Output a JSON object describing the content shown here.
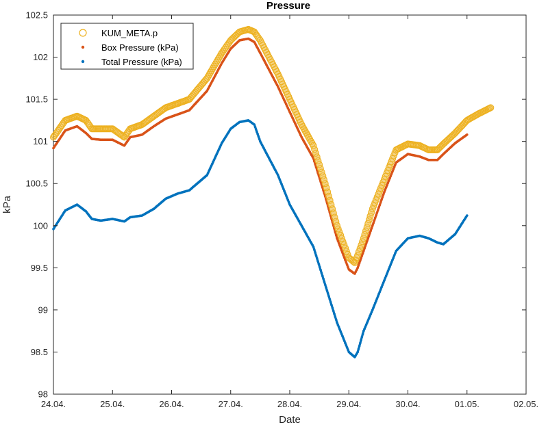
{
  "chart_data": {
    "type": "scatter",
    "title": "Pressure",
    "xlabel": "Date",
    "ylabel": "kPa",
    "xlim": [
      0,
      8
    ],
    "ylim": [
      98,
      102.5
    ],
    "grid": false,
    "legend_position": "top-left",
    "xtick_labels": [
      "24.04.",
      "25.04.",
      "26.04.",
      "27.04.",
      "28.04.",
      "29.04.",
      "30.04.",
      "01.05.",
      "02.05."
    ],
    "yticks": [
      98,
      98.5,
      99,
      99.5,
      100,
      100.5,
      101,
      101.5,
      102,
      102.5
    ],
    "ytick_labels": [
      "98",
      "98.5",
      "99",
      "99.5",
      "100",
      "100.5",
      "101",
      "101.5",
      "102",
      "102.5"
    ],
    "x_days_since": "24.04.",
    "series": [
      {
        "name": "KUM_META.p",
        "color": "#EDB120",
        "marker": "circle-open",
        "x": [
          0.0,
          0.2,
          0.4,
          0.55,
          0.65,
          0.8,
          1.0,
          1.2,
          1.3,
          1.5,
          1.7,
          1.9,
          2.1,
          2.3,
          2.6,
          2.85,
          3.0,
          3.15,
          3.3,
          3.4,
          3.5,
          3.65,
          3.8,
          4.0,
          4.2,
          4.4,
          4.6,
          4.8,
          5.0,
          5.1,
          5.15,
          5.25,
          5.4,
          5.6,
          5.8,
          6.0,
          6.2,
          6.35,
          6.5,
          6.6,
          6.8,
          7.0,
          7.2,
          7.4
        ],
        "y": [
          101.05,
          101.25,
          101.3,
          101.25,
          101.15,
          101.15,
          101.15,
          101.05,
          101.15,
          101.2,
          101.3,
          101.4,
          101.45,
          101.5,
          101.75,
          102.05,
          102.2,
          102.3,
          102.33,
          102.3,
          102.2,
          102.0,
          101.8,
          101.5,
          101.2,
          100.95,
          100.5,
          100.0,
          99.62,
          99.56,
          99.65,
          99.85,
          100.2,
          100.55,
          100.9,
          100.97,
          100.95,
          100.9,
          100.9,
          100.97,
          101.1,
          101.25,
          101.33,
          101.4
        ]
      },
      {
        "name": "Box Pressure (kPa)",
        "color": "#D95319",
        "marker": "dot",
        "x": [
          0.0,
          0.2,
          0.4,
          0.55,
          0.65,
          0.8,
          1.0,
          1.2,
          1.3,
          1.5,
          1.7,
          1.9,
          2.1,
          2.3,
          2.6,
          2.85,
          3.0,
          3.15,
          3.3,
          3.4,
          3.5,
          3.65,
          3.8,
          4.0,
          4.2,
          4.4,
          4.6,
          4.8,
          5.0,
          5.1,
          5.15,
          5.25,
          5.4,
          5.6,
          5.8,
          6.0,
          6.2,
          6.35,
          6.5,
          6.6,
          6.8,
          7.0
        ],
        "y": [
          100.92,
          101.13,
          101.18,
          101.1,
          101.03,
          101.02,
          101.02,
          100.95,
          101.05,
          101.08,
          101.18,
          101.27,
          101.32,
          101.37,
          101.6,
          101.93,
          102.1,
          102.2,
          102.22,
          102.18,
          102.05,
          101.85,
          101.65,
          101.35,
          101.05,
          100.8,
          100.35,
          99.85,
          99.48,
          99.43,
          99.5,
          99.7,
          100.0,
          100.4,
          100.75,
          100.85,
          100.82,
          100.78,
          100.78,
          100.85,
          100.98,
          101.08
        ]
      },
      {
        "name": "Total Pressure (kPa)",
        "color": "#0072BD",
        "marker": "dot",
        "x": [
          0.0,
          0.2,
          0.4,
          0.55,
          0.65,
          0.8,
          1.0,
          1.2,
          1.3,
          1.5,
          1.7,
          1.9,
          2.1,
          2.3,
          2.6,
          2.85,
          3.0,
          3.15,
          3.3,
          3.4,
          3.5,
          3.65,
          3.8,
          4.0,
          4.2,
          4.4,
          4.6,
          4.8,
          5.0,
          5.1,
          5.15,
          5.25,
          5.4,
          5.6,
          5.8,
          6.0,
          6.2,
          6.35,
          6.5,
          6.6,
          6.8,
          7.0
        ],
        "y": [
          99.96,
          100.18,
          100.25,
          100.17,
          100.08,
          100.06,
          100.08,
          100.05,
          100.1,
          100.12,
          100.2,
          100.32,
          100.38,
          100.42,
          100.6,
          100.98,
          101.15,
          101.23,
          101.25,
          101.2,
          101.0,
          100.8,
          100.6,
          100.25,
          100.0,
          99.75,
          99.3,
          98.85,
          98.5,
          98.44,
          98.5,
          98.75,
          99.0,
          99.35,
          99.7,
          99.85,
          99.88,
          99.85,
          99.8,
          99.78,
          99.9,
          100.12
        ]
      }
    ]
  }
}
